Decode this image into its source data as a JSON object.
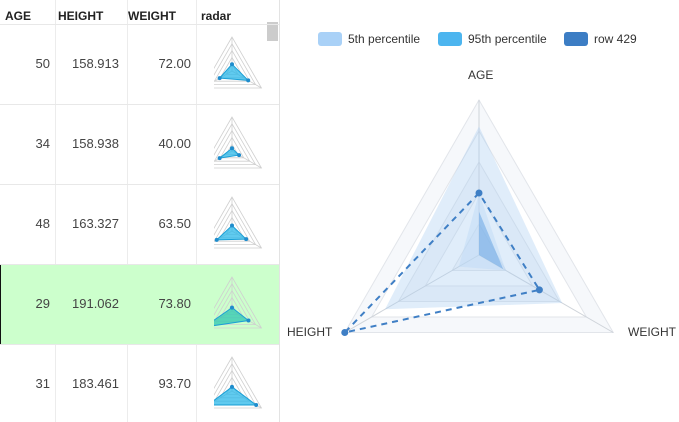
{
  "grid": {
    "columns": {
      "age": "AGE",
      "height": "HEIGHT",
      "weight": "WEIGHT",
      "radar": "radar"
    },
    "rows": [
      {
        "age": "50",
        "height": "158.913",
        "weight": "72.00",
        "selected": false,
        "spark": [
          0.2,
          0.42,
          0.55
        ]
      },
      {
        "age": "34",
        "height": "158.938",
        "weight": "40.00",
        "selected": false,
        "spark": [
          0.08,
          0.42,
          0.24
        ]
      },
      {
        "age": "48",
        "height": "163.327",
        "weight": "63.50",
        "selected": false,
        "spark": [
          0.16,
          0.52,
          0.48
        ]
      },
      {
        "age": "29",
        "height": "191.062",
        "weight": "73.80",
        "selected": true,
        "spark": [
          0.1,
          0.95,
          0.56
        ]
      },
      {
        "age": "31",
        "height": "183.461",
        "weight": "93.70",
        "selected": false,
        "spark": [
          0.12,
          0.82,
          0.82
        ]
      }
    ]
  },
  "chart_data": {
    "type": "radar",
    "indicators": [
      "AGE",
      "HEIGHT",
      "WEIGHT"
    ],
    "series": [
      {
        "name": "5th percentile",
        "values": [
          0.4,
          0.15,
          0.2
        ],
        "color": "#bfdaf8"
      },
      {
        "name": "95th percentile",
        "values": [
          0.83,
          0.7,
          0.62
        ],
        "color": "#55bff0"
      },
      {
        "name": "row 429",
        "values": [
          0.4,
          1.0,
          0.45
        ],
        "color": "#3f7fc5"
      }
    ]
  },
  "legend": {
    "items": [
      {
        "label": "5th percentile",
        "color": "#a9d1f7"
      },
      {
        "label": "95th percentile",
        "color": "#4cb5ef"
      },
      {
        "label": "row 429",
        "color": "#3c7dc4"
      }
    ]
  },
  "radar_labels": {
    "age": "AGE",
    "height": "HEIGHT",
    "weight": "WEIGHT"
  }
}
